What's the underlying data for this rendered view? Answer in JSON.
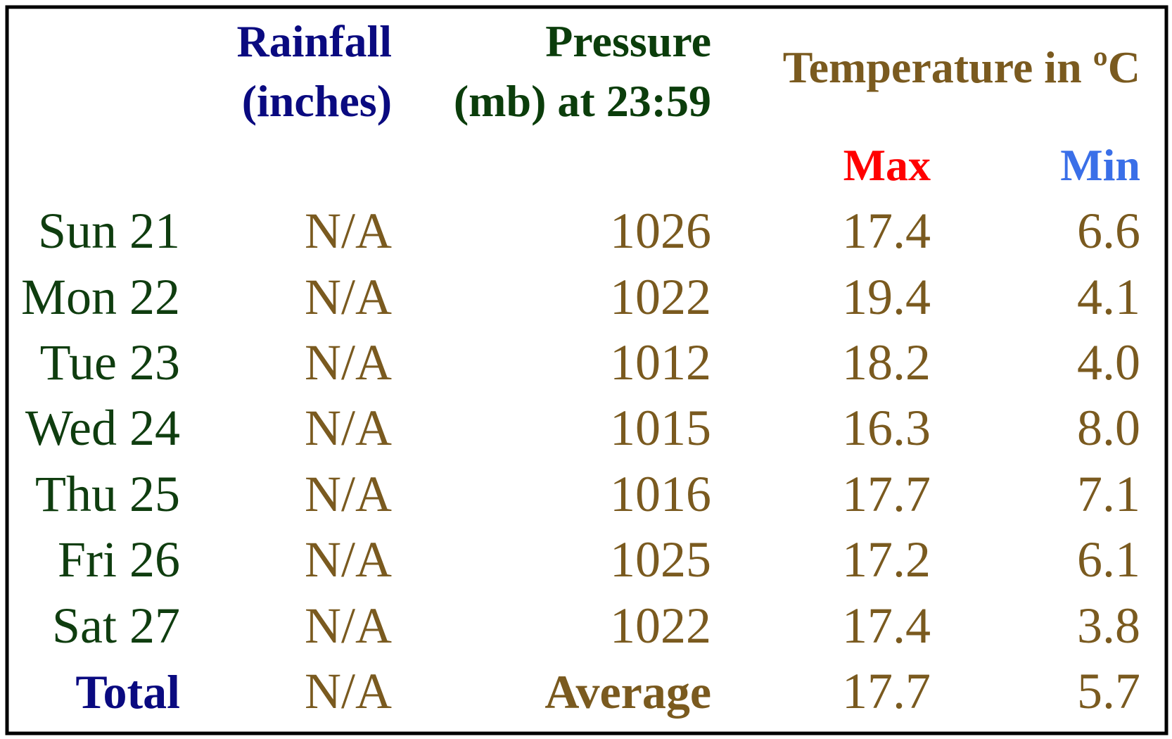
{
  "header": {
    "rainfall": [
      "Rainfall",
      "(inches)"
    ],
    "pressure": [
      "Pressure",
      "(mb) at 23:59"
    ],
    "temperature": "Temperature in ºC",
    "max": "Max",
    "min": "Min"
  },
  "table": {
    "rows": [
      [
        "Sun 21",
        "N/A",
        "1026",
        "17.4",
        "6.6"
      ],
      [
        "Mon 22",
        "N/A",
        "1022",
        "19.4",
        "4.1"
      ],
      [
        "Tue 23",
        "N/A",
        "1012",
        "18.2",
        "4.0"
      ],
      [
        "Wed 24",
        "N/A",
        "1015",
        "16.3",
        "8.0"
      ],
      [
        "Thu 25",
        "N/A",
        "1016",
        "17.7",
        "7.1"
      ],
      [
        "Fri 26",
        "N/A",
        "1025",
        "17.2",
        "6.1"
      ],
      [
        "Sat 27",
        "N/A",
        "1022",
        "17.4",
        "3.8"
      ]
    ],
    "footer": [
      "Total",
      "N/A",
      "Average",
      "17.7",
      "5.7"
    ]
  }
}
